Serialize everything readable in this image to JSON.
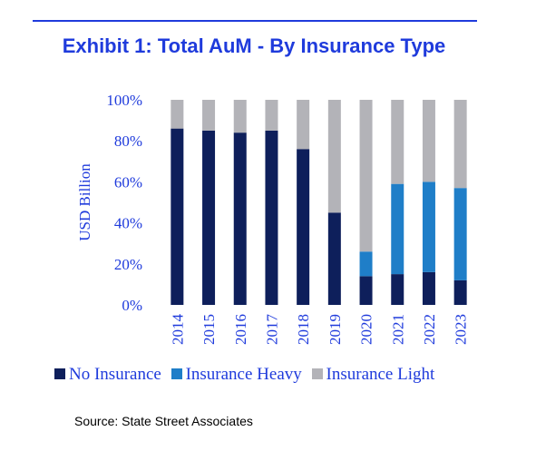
{
  "title": "Exhibit 1: Total AuM - By Insurance Type",
  "source": "Source: State Street Associates",
  "colors": {
    "title": "#1f3bdc",
    "no_insurance": "#0e1f5b",
    "insurance_heavy": "#1f7ec8",
    "insurance_light": "#b3b3b8"
  },
  "chart_data": {
    "type": "bar",
    "stacked": true,
    "categories": [
      "2014",
      "2015",
      "2016",
      "2017",
      "2018",
      "2019",
      "2020",
      "2021",
      "2022",
      "2023"
    ],
    "series": [
      {
        "name": "No Insurance",
        "values": [
          86,
          85,
          84,
          85,
          76,
          45,
          14,
          15,
          16,
          12
        ]
      },
      {
        "name": "Insurance Heavy",
        "values": [
          0,
          0,
          0,
          0,
          0,
          0,
          12,
          44,
          44,
          45
        ]
      },
      {
        "name": "Insurance Light",
        "values": [
          14,
          15,
          16,
          15,
          24,
          55,
          74,
          41,
          40,
          43
        ]
      }
    ],
    "ylabel": "USD Billion",
    "xlabel": "",
    "ylim": [
      0,
      100
    ],
    "yticks": [
      "0%",
      "20%",
      "40%",
      "60%",
      "80%",
      "100%"
    ],
    "grid": false,
    "legend_position": "bottom"
  }
}
